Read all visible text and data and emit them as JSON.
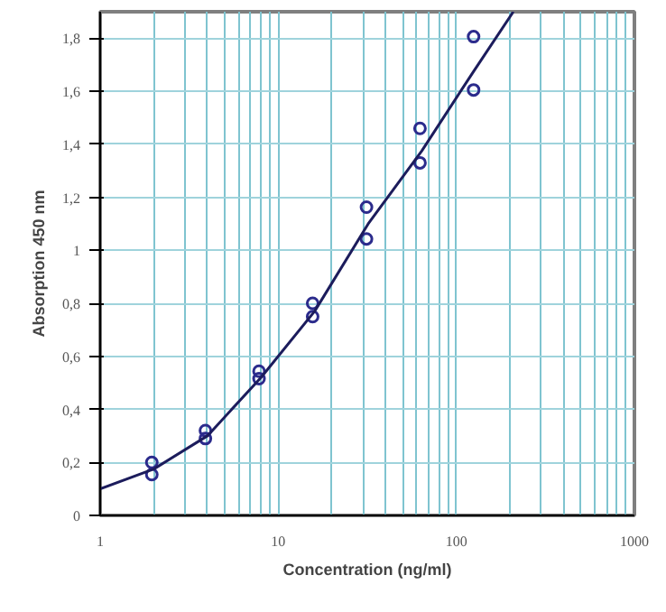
{
  "chart_data": {
    "type": "scatter",
    "xlabel": "Concentration (ng/ml)",
    "ylabel": "Absorption 450 nm",
    "log": "x",
    "xlim": [
      1,
      1000
    ],
    "ylim": [
      0,
      1.9
    ],
    "xticks": [
      1,
      {
        "value": 2,
        "label": null
      },
      {
        "value": 3,
        "label": null
      },
      {
        "value": 4,
        "label": null
      },
      {
        "value": 5,
        "label": null
      },
      {
        "value": 6,
        "label": null
      },
      {
        "value": 7,
        "label": null
      },
      {
        "value": 8,
        "label": null
      },
      {
        "value": 9,
        "label": null
      },
      10,
      {
        "value": 20,
        "label": null
      },
      {
        "value": 30,
        "label": null
      },
      {
        "value": 40,
        "label": null
      },
      {
        "value": 50,
        "label": null
      },
      {
        "value": 60,
        "label": null
      },
      {
        "value": 70,
        "label": null
      },
      {
        "value": 80,
        "label": null
      },
      {
        "value": 90,
        "label": null
      },
      100,
      {
        "value": 200,
        "label": null
      },
      {
        "value": 300,
        "label": null
      },
      {
        "value": 400,
        "label": null
      },
      {
        "value": 500,
        "label": null
      },
      {
        "value": 600,
        "label": null
      },
      {
        "value": 700,
        "label": null
      },
      {
        "value": 800,
        "label": null
      },
      {
        "value": 900,
        "label": null
      },
      1000
    ],
    "yticks": [
      0,
      {
        "value": 0.2,
        "label": "0,2"
      },
      {
        "value": 0.4,
        "label": "0,4"
      },
      {
        "value": 0.6,
        "label": "0,6"
      },
      {
        "value": 0.8,
        "label": "0,8"
      },
      1,
      {
        "value": 1.2,
        "label": "1,2"
      },
      {
        "value": 1.4,
        "label": "1,4"
      },
      {
        "value": 1.6,
        "label": "1,6"
      },
      {
        "value": 1.8,
        "label": "1,8"
      }
    ],
    "grid": true,
    "marker": "circle",
    "series": [
      {
        "color": "#2b2b8c",
        "x": [
          1.95,
          1.95,
          3.9,
          3.9,
          7.8,
          7.8,
          15.6,
          15.6,
          31.3,
          31.3,
          62.5,
          62.5,
          125,
          125
        ],
        "values": [
          0.2,
          0.154,
          0.32,
          0.29,
          0.544,
          0.516,
          0.8,
          0.75,
          1.163,
          1.043,
          1.46,
          1.33,
          1.806,
          1.605
        ]
      },
      {
        "type": "line",
        "color": "#1c1c5c",
        "marker": "none",
        "x": [
          1,
          2,
          4,
          8,
          16,
          32,
          64,
          125,
          209
        ],
        "values": [
          0.1,
          0.175,
          0.3,
          0.52,
          0.77,
          1.1,
          1.375,
          1.675,
          1.9
        ]
      }
    ]
  }
}
